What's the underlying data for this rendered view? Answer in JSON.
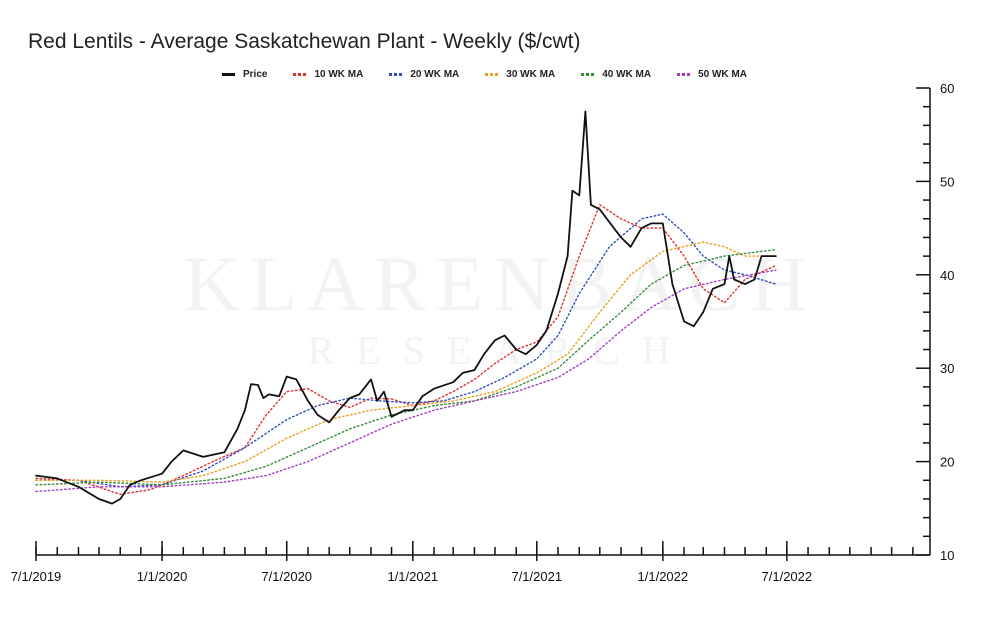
{
  "chart_data": {
    "type": "line",
    "title": "Red Lentils - Average Saskatchewan Plant - Weekly ($/cwt)",
    "xlabel": "",
    "ylabel": "",
    "ylim": [
      10,
      60
    ],
    "xlim": [
      "2019-07-01",
      "2023-01-26"
    ],
    "y_ticks": [
      10,
      20,
      30,
      40,
      50,
      60
    ],
    "y_axis_side": "right",
    "x_ticks": [
      "2019-07-01",
      "2020-01-01",
      "2020-07-01",
      "2021-01-01",
      "2021-07-01",
      "2022-01-01",
      "2022-07-01"
    ],
    "x_tick_labels": [
      "7/1/2019",
      "1/1/2020",
      "7/1/2020",
      "1/1/2021",
      "7/1/2021",
      "1/1/2022",
      "7/1/2022"
    ],
    "grid": false,
    "legend_position": "top",
    "watermark": [
      "KLARENBACH",
      "RESEARCH"
    ],
    "series": [
      {
        "name": "Price",
        "color": "#111111",
        "style": "solid",
        "points": [
          [
            "2019-07-01",
            18.5
          ],
          [
            "2019-08-01",
            18.2
          ],
          [
            "2019-09-01",
            17.3
          ],
          [
            "2019-10-01",
            16.0
          ],
          [
            "2019-10-20",
            15.5
          ],
          [
            "2019-11-01",
            16.0
          ],
          [
            "2019-11-15",
            17.5
          ],
          [
            "2019-12-01",
            18.0
          ],
          [
            "2020-01-01",
            18.7
          ],
          [
            "2020-01-15",
            20.0
          ],
          [
            "2020-02-01",
            21.2
          ],
          [
            "2020-03-01",
            20.5
          ],
          [
            "2020-04-01",
            21.0
          ],
          [
            "2020-04-20",
            23.5
          ],
          [
            "2020-05-01",
            25.5
          ],
          [
            "2020-05-10",
            28.3
          ],
          [
            "2020-05-20",
            28.2
          ],
          [
            "2020-05-28",
            26.8
          ],
          [
            "2020-06-05",
            27.2
          ],
          [
            "2020-06-20",
            27.0
          ],
          [
            "2020-07-01",
            29.1
          ],
          [
            "2020-07-15",
            28.8
          ],
          [
            "2020-08-01",
            26.5
          ],
          [
            "2020-08-15",
            25.0
          ],
          [
            "2020-09-01",
            24.2
          ],
          [
            "2020-09-15",
            25.5
          ],
          [
            "2020-10-01",
            26.8
          ],
          [
            "2020-10-15",
            27.2
          ],
          [
            "2020-11-01",
            28.8
          ],
          [
            "2020-11-10",
            26.5
          ],
          [
            "2020-11-20",
            27.5
          ],
          [
            "2020-12-01",
            24.8
          ],
          [
            "2020-12-20",
            25.5
          ],
          [
            "2021-01-01",
            25.5
          ],
          [
            "2021-01-15",
            27.0
          ],
          [
            "2021-02-01",
            27.8
          ],
          [
            "2021-03-01",
            28.5
          ],
          [
            "2021-03-15",
            29.5
          ],
          [
            "2021-04-01",
            29.8
          ],
          [
            "2021-04-15",
            31.5
          ],
          [
            "2021-05-01",
            33.0
          ],
          [
            "2021-05-15",
            33.5
          ],
          [
            "2021-06-01",
            32.0
          ],
          [
            "2021-06-15",
            31.5
          ],
          [
            "2021-07-01",
            32.5
          ],
          [
            "2021-07-15",
            34.0
          ],
          [
            "2021-08-01",
            38.0
          ],
          [
            "2021-08-15",
            42.0
          ],
          [
            "2021-08-22",
            49.0
          ],
          [
            "2021-09-01",
            48.5
          ],
          [
            "2021-09-10",
            57.5
          ],
          [
            "2021-09-18",
            47.5
          ],
          [
            "2021-10-01",
            47.0
          ],
          [
            "2021-11-01",
            44.0
          ],
          [
            "2021-11-15",
            43.0
          ],
          [
            "2021-12-01",
            45.0
          ],
          [
            "2021-12-15",
            45.5
          ],
          [
            "2022-01-01",
            45.5
          ],
          [
            "2022-01-15",
            39.0
          ],
          [
            "2022-02-01",
            35.0
          ],
          [
            "2022-02-15",
            34.5
          ],
          [
            "2022-03-01",
            36.0
          ],
          [
            "2022-03-15",
            38.5
          ],
          [
            "2022-04-01",
            39.0
          ],
          [
            "2022-04-08",
            42.0
          ],
          [
            "2022-04-15",
            39.5
          ],
          [
            "2022-05-01",
            39.0
          ],
          [
            "2022-05-15",
            39.5
          ],
          [
            "2022-05-25",
            42.0
          ],
          [
            "2022-06-15",
            42.0
          ]
        ]
      },
      {
        "name": "10 WK MA",
        "color": "#e03030",
        "style": "dotted",
        "points": [
          [
            "2019-07-01",
            18.2
          ],
          [
            "2019-09-01",
            18.0
          ],
          [
            "2019-11-01",
            16.5
          ],
          [
            "2019-12-15",
            17.0
          ],
          [
            "2020-02-01",
            18.5
          ],
          [
            "2020-03-15",
            20.0
          ],
          [
            "2020-05-01",
            21.5
          ],
          [
            "2020-06-01",
            25.0
          ],
          [
            "2020-07-01",
            27.5
          ],
          [
            "2020-08-01",
            27.8
          ],
          [
            "2020-09-01",
            26.5
          ],
          [
            "2020-10-01",
            25.8
          ],
          [
            "2020-11-01",
            26.8
          ],
          [
            "2020-12-01",
            26.7
          ],
          [
            "2021-01-01",
            26.0
          ],
          [
            "2021-02-01",
            26.5
          ],
          [
            "2021-03-01",
            27.5
          ],
          [
            "2021-04-01",
            28.8
          ],
          [
            "2021-05-01",
            30.5
          ],
          [
            "2021-06-01",
            32.0
          ],
          [
            "2021-07-01",
            32.8
          ],
          [
            "2021-08-01",
            35.5
          ],
          [
            "2021-09-01",
            42.0
          ],
          [
            "2021-10-01",
            47.5
          ],
          [
            "2021-11-01",
            46.0
          ],
          [
            "2021-12-01",
            45.0
          ],
          [
            "2022-01-01",
            45.0
          ],
          [
            "2022-02-01",
            42.0
          ],
          [
            "2022-03-01",
            38.5
          ],
          [
            "2022-04-01",
            37.0
          ],
          [
            "2022-05-01",
            39.5
          ],
          [
            "2022-06-15",
            41.0
          ]
        ]
      },
      {
        "name": "20 WK MA",
        "color": "#2f4ec0",
        "style": "dotted",
        "points": [
          [
            "2019-07-01",
            18.0
          ],
          [
            "2019-09-01",
            18.0
          ],
          [
            "2019-11-01",
            17.3
          ],
          [
            "2020-01-01",
            17.5
          ],
          [
            "2020-03-01",
            19.0
          ],
          [
            "2020-05-01",
            21.5
          ],
          [
            "2020-07-01",
            24.5
          ],
          [
            "2020-08-15",
            26.0
          ],
          [
            "2020-10-01",
            26.8
          ],
          [
            "2020-11-15",
            26.5
          ],
          [
            "2021-01-01",
            26.3
          ],
          [
            "2021-02-15",
            26.5
          ],
          [
            "2021-04-01",
            27.5
          ],
          [
            "2021-05-15",
            29.0
          ],
          [
            "2021-07-01",
            31.0
          ],
          [
            "2021-08-01",
            33.5
          ],
          [
            "2021-09-01",
            38.0
          ],
          [
            "2021-10-15",
            43.0
          ],
          [
            "2021-12-01",
            46.0
          ],
          [
            "2022-01-01",
            46.5
          ],
          [
            "2022-02-01",
            44.5
          ],
          [
            "2022-03-01",
            42.0
          ],
          [
            "2022-04-01",
            40.5
          ],
          [
            "2022-05-01",
            40.0
          ],
          [
            "2022-06-15",
            39.0
          ]
        ]
      },
      {
        "name": "30 WK MA",
        "color": "#e8a020",
        "style": "dotted",
        "points": [
          [
            "2019-07-01",
            18.0
          ],
          [
            "2019-10-01",
            18.0
          ],
          [
            "2020-01-01",
            17.8
          ],
          [
            "2020-03-01",
            18.5
          ],
          [
            "2020-05-01",
            20.0
          ],
          [
            "2020-07-01",
            22.5
          ],
          [
            "2020-09-01",
            24.5
          ],
          [
            "2020-11-01",
            25.5
          ],
          [
            "2021-01-01",
            26.0
          ],
          [
            "2021-03-01",
            26.5
          ],
          [
            "2021-05-01",
            27.5
          ],
          [
            "2021-07-01",
            29.5
          ],
          [
            "2021-08-15",
            31.5
          ],
          [
            "2021-10-01",
            36.0
          ],
          [
            "2021-11-15",
            40.0
          ],
          [
            "2022-01-01",
            42.5
          ],
          [
            "2022-03-01",
            43.5
          ],
          [
            "2022-04-01",
            43.0
          ],
          [
            "2022-05-01",
            42.0
          ],
          [
            "2022-06-15",
            42.0
          ]
        ]
      },
      {
        "name": "40 WK MA",
        "color": "#3a8a3a",
        "style": "dotted",
        "points": [
          [
            "2019-07-01",
            17.5
          ],
          [
            "2019-10-01",
            17.8
          ],
          [
            "2020-01-01",
            17.5
          ],
          [
            "2020-04-01",
            18.2
          ],
          [
            "2020-06-01",
            19.5
          ],
          [
            "2020-08-01",
            21.5
          ],
          [
            "2020-10-01",
            23.5
          ],
          [
            "2020-12-01",
            25.0
          ],
          [
            "2021-02-01",
            26.0
          ],
          [
            "2021-04-01",
            26.5
          ],
          [
            "2021-06-01",
            28.0
          ],
          [
            "2021-08-01",
            30.0
          ],
          [
            "2021-09-15",
            33.0
          ],
          [
            "2021-11-01",
            36.0
          ],
          [
            "2021-12-15",
            39.0
          ],
          [
            "2022-02-01",
            41.0
          ],
          [
            "2022-04-01",
            42.0
          ],
          [
            "2022-06-15",
            42.7
          ]
        ]
      },
      {
        "name": "50 WK MA",
        "color": "#a040c0",
        "style": "dotted",
        "points": [
          [
            "2019-07-01",
            16.8
          ],
          [
            "2019-10-01",
            17.3
          ],
          [
            "2020-01-01",
            17.3
          ],
          [
            "2020-04-01",
            17.8
          ],
          [
            "2020-06-01",
            18.5
          ],
          [
            "2020-08-01",
            20.0
          ],
          [
            "2020-10-01",
            22.0
          ],
          [
            "2020-12-01",
            24.0
          ],
          [
            "2021-02-01",
            25.5
          ],
          [
            "2021-04-01",
            26.5
          ],
          [
            "2021-06-01",
            27.5
          ],
          [
            "2021-08-01",
            29.0
          ],
          [
            "2021-09-15",
            31.0
          ],
          [
            "2021-11-01",
            34.0
          ],
          [
            "2021-12-15",
            36.5
          ],
          [
            "2022-02-01",
            38.5
          ],
          [
            "2022-04-01",
            39.5
          ],
          [
            "2022-06-15",
            40.5
          ]
        ]
      }
    ]
  }
}
